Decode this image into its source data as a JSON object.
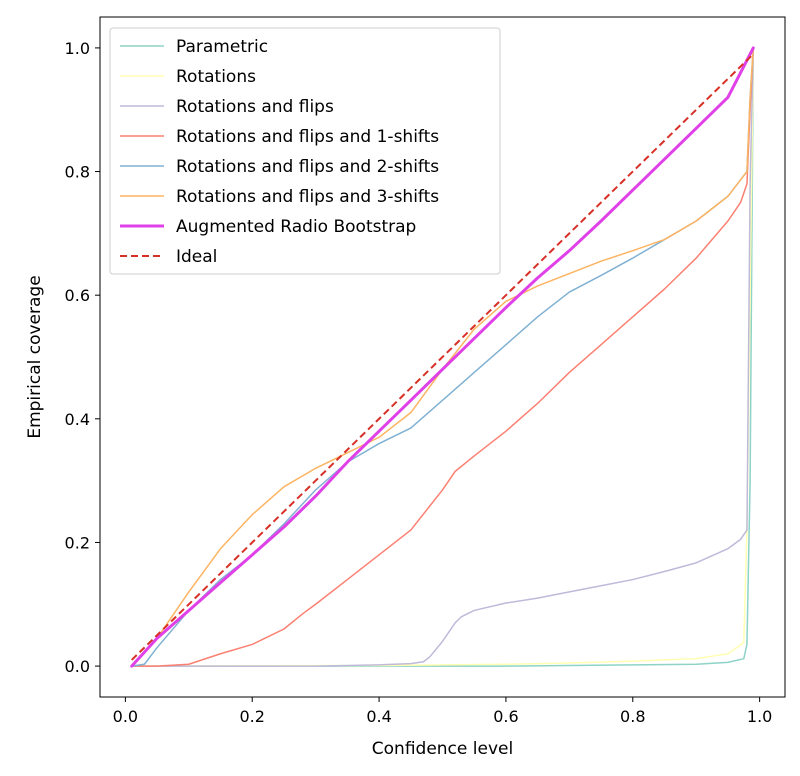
{
  "chart_data": {
    "type": "line",
    "xlabel": "Confidence level",
    "ylabel": "Empirical coverage",
    "xlim": [
      -0.04,
      1.04
    ],
    "ylim": [
      -0.05,
      1.05
    ],
    "xticks": [
      0.0,
      0.2,
      0.4,
      0.6,
      0.8,
      1.0
    ],
    "xtick_labels": [
      "0.0",
      "0.2",
      "0.4",
      "0.6",
      "0.8",
      "1.0"
    ],
    "yticks": [
      0.0,
      0.2,
      0.4,
      0.6,
      0.8,
      1.0
    ],
    "ytick_labels": [
      "0.0",
      "0.2",
      "0.4",
      "0.6",
      "0.8",
      "1.0"
    ],
    "grid": false,
    "legend_position": "upper-left",
    "series": [
      {
        "name": "Parametric",
        "color": "#8dd3c7",
        "width": 1.5,
        "dash": false,
        "x": [
          0.01,
          0.5,
          0.6,
          0.7,
          0.8,
          0.9,
          0.95,
          0.975,
          0.98,
          0.985,
          0.99
        ],
        "y": [
          0.0,
          0.0,
          0.0,
          0.001,
          0.002,
          0.003,
          0.006,
          0.012,
          0.035,
          0.3,
          1.0
        ]
      },
      {
        "name": "Rotations",
        "color": "#ffffb3",
        "width": 1.5,
        "dash": false,
        "x": [
          0.01,
          0.4,
          0.5,
          0.6,
          0.7,
          0.8,
          0.9,
          0.95,
          0.975,
          0.98,
          0.985,
          0.99
        ],
        "y": [
          0.0,
          0.001,
          0.002,
          0.003,
          0.005,
          0.008,
          0.012,
          0.02,
          0.038,
          0.22,
          0.6,
          1.0
        ]
      },
      {
        "name": "Rotations and flips",
        "color": "#bebada",
        "width": 1.5,
        "dash": false,
        "x": [
          0.01,
          0.2,
          0.3,
          0.4,
          0.45,
          0.47,
          0.48,
          0.5,
          0.52,
          0.53,
          0.55,
          0.6,
          0.65,
          0.7,
          0.75,
          0.8,
          0.85,
          0.9,
          0.95,
          0.97,
          0.98,
          0.985,
          0.99
        ],
        "y": [
          0.0,
          0.0,
          0.0,
          0.002,
          0.004,
          0.007,
          0.015,
          0.04,
          0.07,
          0.08,
          0.09,
          0.102,
          0.11,
          0.12,
          0.13,
          0.14,
          0.153,
          0.167,
          0.19,
          0.205,
          0.22,
          0.78,
          1.0
        ]
      },
      {
        "name": "Rotations and flips and 1-shifts",
        "color": "#fb8072",
        "width": 1.5,
        "dash": false,
        "x": [
          0.01,
          0.05,
          0.1,
          0.15,
          0.2,
          0.25,
          0.28,
          0.3,
          0.35,
          0.4,
          0.45,
          0.5,
          0.52,
          0.55,
          0.6,
          0.65,
          0.7,
          0.75,
          0.8,
          0.85,
          0.9,
          0.95,
          0.97,
          0.98,
          0.985,
          0.99
        ],
        "y": [
          0.0,
          0.0,
          0.003,
          0.02,
          0.035,
          0.06,
          0.085,
          0.1,
          0.14,
          0.18,
          0.22,
          0.285,
          0.315,
          0.34,
          0.38,
          0.425,
          0.475,
          0.52,
          0.565,
          0.61,
          0.66,
          0.72,
          0.75,
          0.78,
          0.9,
          1.0
        ]
      },
      {
        "name": "Rotations and flips and 2-shifts",
        "color": "#80b1d3",
        "width": 1.5,
        "dash": false,
        "x": [
          0.01,
          0.03,
          0.05,
          0.1,
          0.15,
          0.2,
          0.25,
          0.3,
          0.35,
          0.4,
          0.45,
          0.5,
          0.55,
          0.6,
          0.65,
          0.7,
          0.75,
          0.8,
          0.85,
          0.9,
          0.95,
          0.98,
          0.985,
          0.99
        ],
        "y": [
          0.0,
          0.003,
          0.03,
          0.09,
          0.14,
          0.18,
          0.23,
          0.285,
          0.33,
          0.36,
          0.385,
          0.43,
          0.475,
          0.52,
          0.565,
          0.605,
          0.632,
          0.66,
          0.69,
          0.72,
          0.76,
          0.8,
          0.92,
          1.0
        ]
      },
      {
        "name": "Rotations and flips and 3-shifts",
        "color": "#fdb462",
        "width": 1.5,
        "dash": false,
        "x": [
          0.01,
          0.05,
          0.1,
          0.15,
          0.2,
          0.25,
          0.3,
          0.35,
          0.4,
          0.45,
          0.5,
          0.55,
          0.6,
          0.65,
          0.7,
          0.75,
          0.8,
          0.85,
          0.9,
          0.95,
          0.98,
          0.985,
          0.99
        ],
        "y": [
          0.0,
          0.045,
          0.12,
          0.19,
          0.245,
          0.29,
          0.32,
          0.345,
          0.37,
          0.41,
          0.48,
          0.545,
          0.59,
          0.615,
          0.635,
          0.655,
          0.672,
          0.69,
          0.72,
          0.76,
          0.8,
          0.92,
          1.0
        ]
      },
      {
        "name": "Augmented Radio Bootstrap",
        "color": "#e040e8",
        "width": 3,
        "dash": false,
        "x": [
          0.01,
          0.05,
          0.1,
          0.15,
          0.2,
          0.25,
          0.3,
          0.35,
          0.4,
          0.45,
          0.5,
          0.55,
          0.6,
          0.65,
          0.7,
          0.75,
          0.8,
          0.85,
          0.9,
          0.95,
          0.99
        ],
        "y": [
          0.0,
          0.045,
          0.09,
          0.135,
          0.18,
          0.225,
          0.275,
          0.33,
          0.38,
          0.43,
          0.48,
          0.53,
          0.58,
          0.628,
          0.672,
          0.72,
          0.77,
          0.82,
          0.87,
          0.92,
          1.0
        ]
      },
      {
        "name": "Ideal",
        "color": "#d73027",
        "width": 2,
        "dash": true,
        "x": [
          0.01,
          0.99
        ],
        "y": [
          0.01,
          0.99
        ]
      }
    ]
  }
}
